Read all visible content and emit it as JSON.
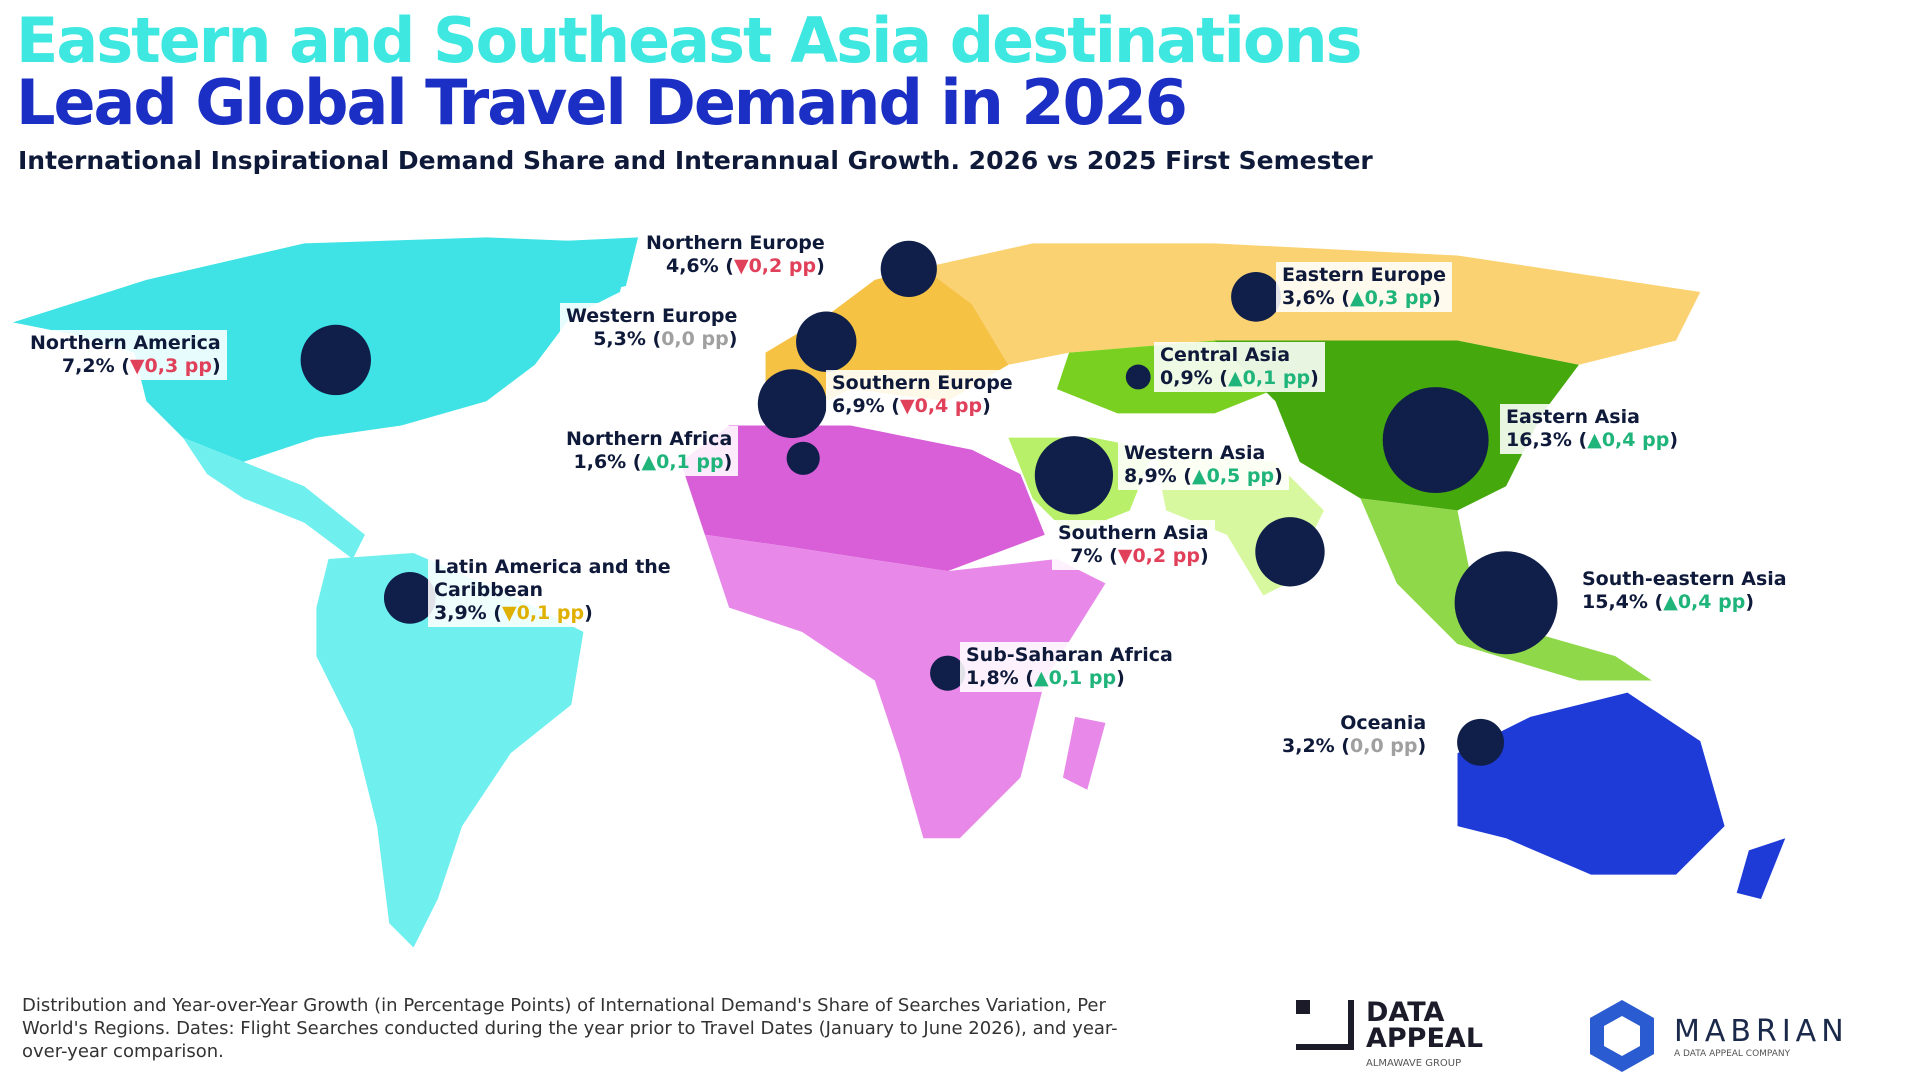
{
  "title_line1": "Eastern and Southeast Asia destinations",
  "title_line2": "Lead Global Travel Demand in 2026",
  "subtitle": "International Inspirational Demand Share and Interannual Growth. 2026 vs 2025 First Semester",
  "colors": {
    "title_cyan": "#3ee8e0",
    "title_blue": "#1c2fc4",
    "bubble": "#0f1f4a",
    "up": "#1fb47a",
    "down": "#e0405a",
    "flat": "#a0a0a0",
    "yellow": "#e0b000"
  },
  "chart_data": {
    "type": "bubble-map",
    "unit_share": "%",
    "unit_change": "pp",
    "regions": [
      {
        "name": "Northern America",
        "share": "7,2%",
        "change": "0,3 pp",
        "trend": "down",
        "share_value": 7.2
      },
      {
        "name": "Northern Europe",
        "share": "4,6%",
        "change": "0,2 pp",
        "trend": "down",
        "share_value": 4.6
      },
      {
        "name": "Western Europe",
        "share": "5,3%",
        "change": "0,0 pp",
        "trend": "flat",
        "share_value": 5.3
      },
      {
        "name": "Southern Europe",
        "share": "6,9%",
        "change": "0,4 pp",
        "trend": "down",
        "share_value": 6.9
      },
      {
        "name": "Eastern Europe",
        "share": "3,6%",
        "change": "0,3 pp",
        "trend": "up",
        "share_value": 3.6
      },
      {
        "name": "Central Asia",
        "share": "0,9%",
        "change": "0,1 pp",
        "trend": "up",
        "share_value": 0.9
      },
      {
        "name": "Eastern Asia",
        "share": "16,3%",
        "change": "0,4 pp",
        "trend": "up",
        "share_value": 16.3
      },
      {
        "name": "Northern Africa",
        "share": "1,6%",
        "change": "0,1 pp",
        "trend": "up",
        "share_value": 1.6
      },
      {
        "name": "Western Asia",
        "share": "8,9%",
        "change": "0,5 pp",
        "trend": "up",
        "share_value": 8.9
      },
      {
        "name": "Southern Asia",
        "share": "7%",
        "change": "0,2 pp",
        "trend": "down",
        "share_value": 7
      },
      {
        "name": "South-eastern Asia",
        "share": "15,4%",
        "change": "0,4 pp",
        "trend": "up",
        "share_value": 15.4
      },
      {
        "name": "Latin America and the Caribbean",
        "share": "3,9%",
        "change": "0,1 pp",
        "trend": "down-yellow",
        "share_value": 3.9
      },
      {
        "name": "Sub-Saharan Africa",
        "share": "1,8%",
        "change": "0,1 pp",
        "trend": "up",
        "share_value": 1.8
      },
      {
        "name": "Oceania",
        "share": "3,2%",
        "change": "0,0 pp",
        "trend": "flat",
        "share_value": 3.2
      }
    ]
  },
  "footnote": "Distribution and Year-over-Year Growth (in Percentage Points) of International Demand's Share of Searches Variation, Per World's Regions. Dates: Flight Searches conducted during the year prior to Travel Dates (January to June 2026), and year-over-year comparison.",
  "logos": {
    "data_appeal_line1": "DATA",
    "data_appeal_line2": "APPEAL",
    "data_appeal_tag": "ALMAWAVE GROUP",
    "mabrian": "MABRIAN",
    "mabrian_tag": "A DATA APPEAL COMPANY"
  }
}
